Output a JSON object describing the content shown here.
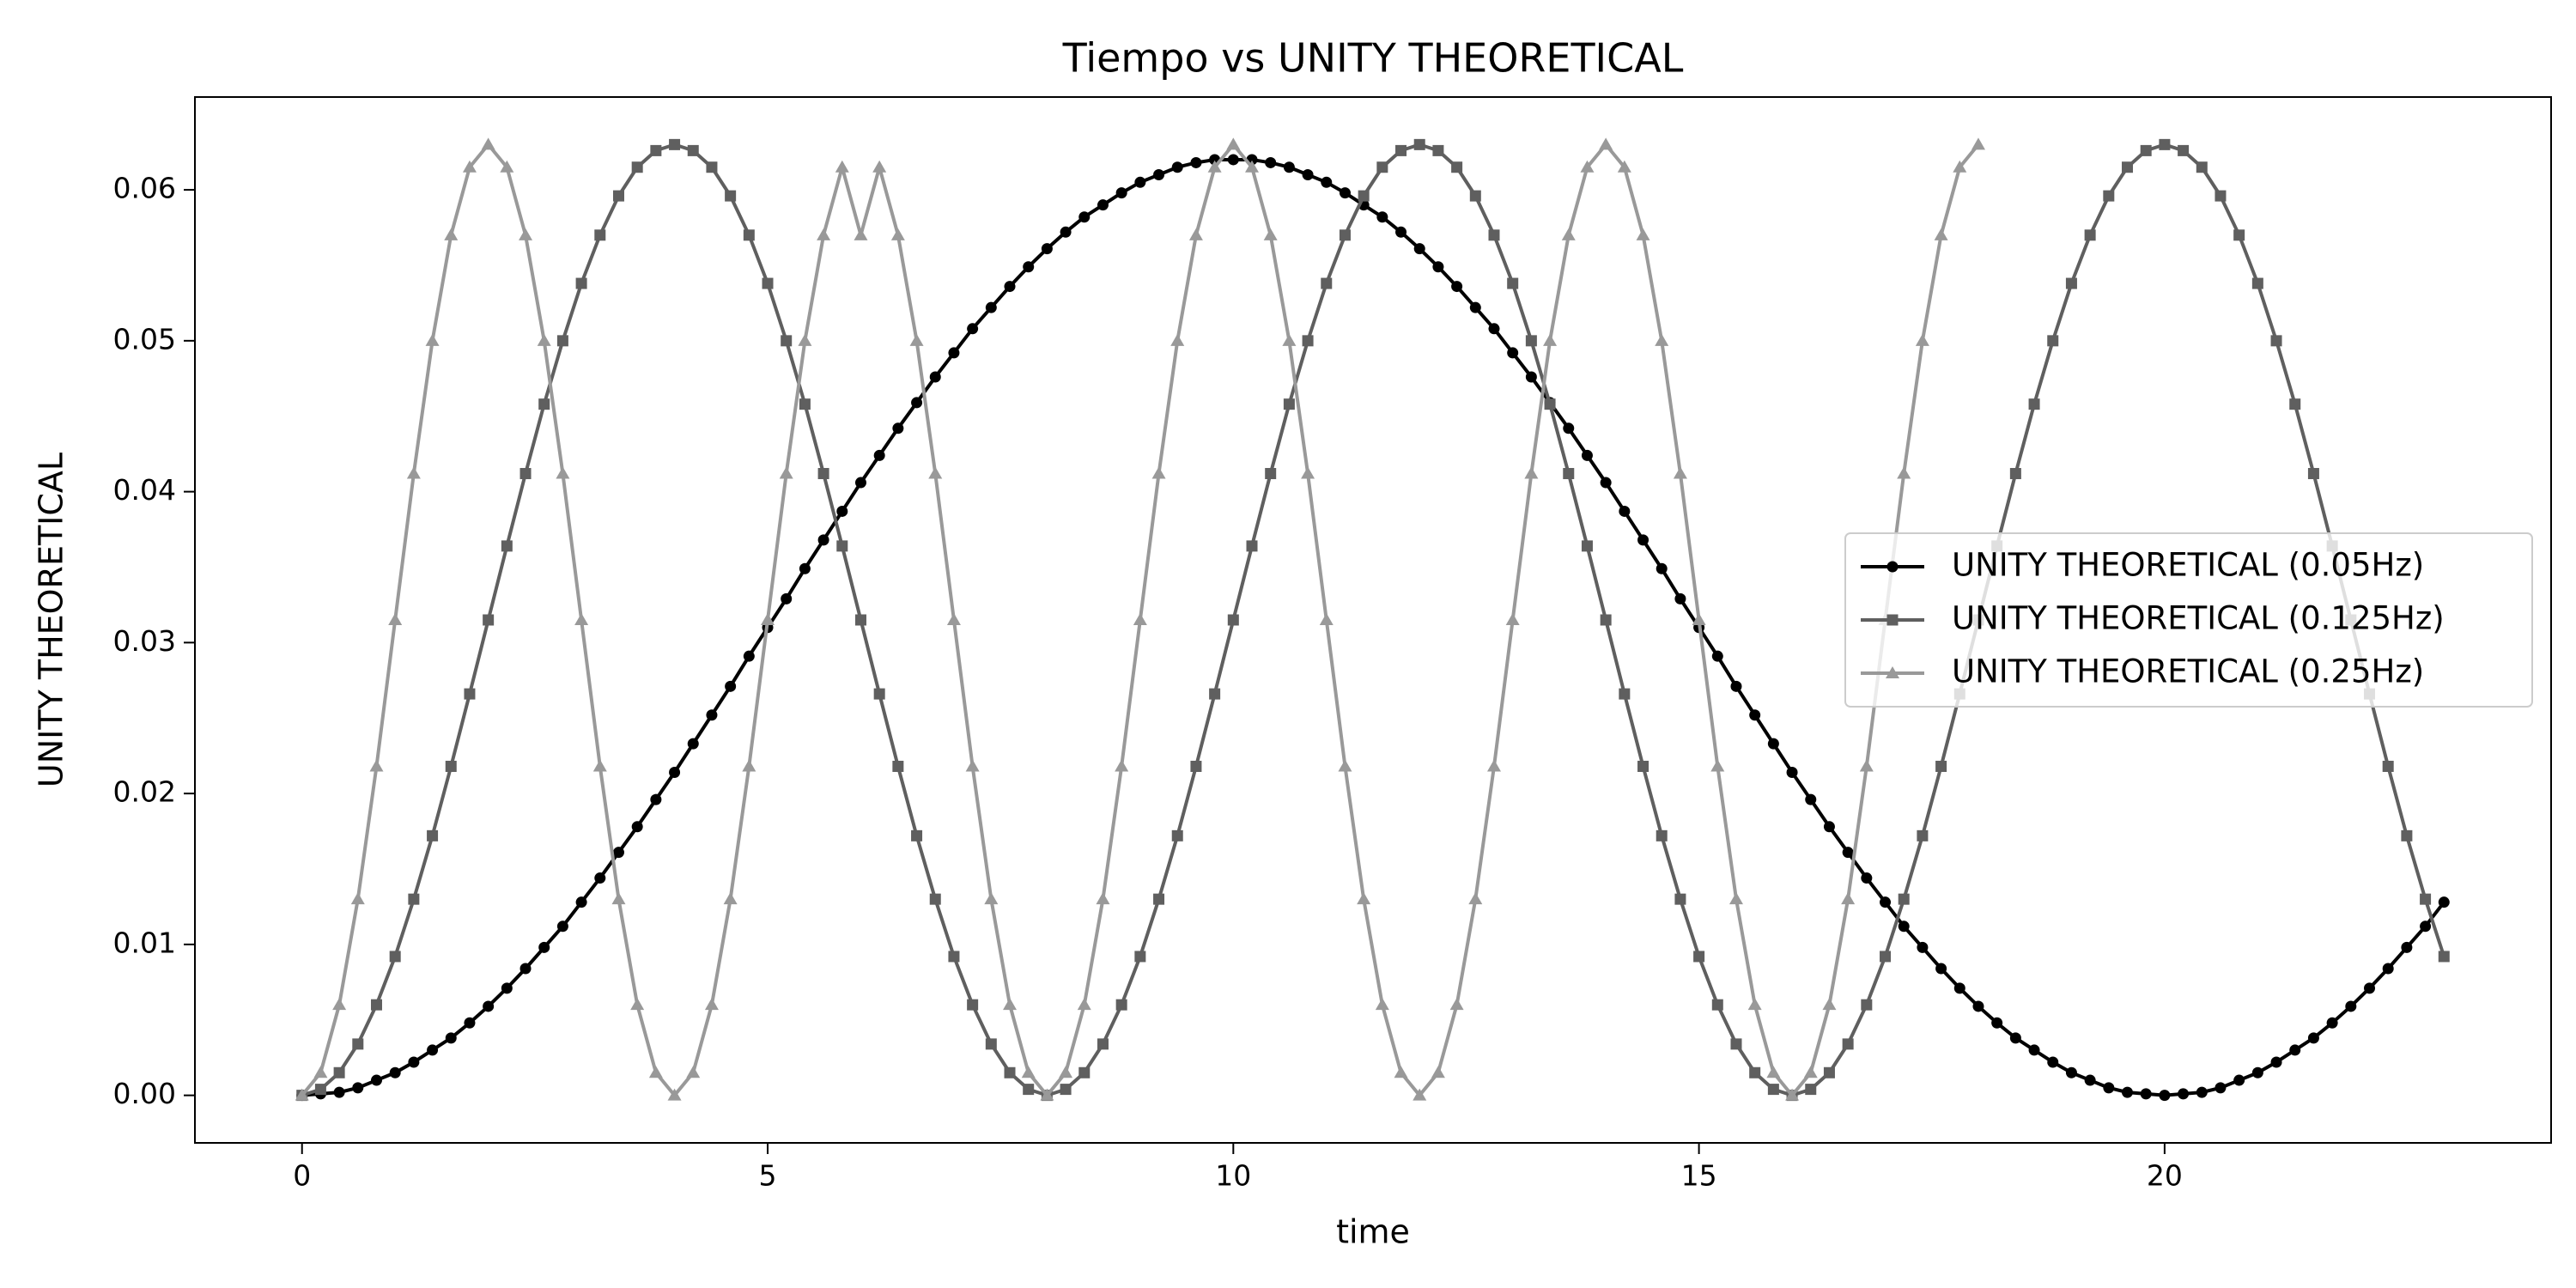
{
  "chart_data": {
    "type": "line",
    "title": "Tiempo vs UNITY THEORETICAL",
    "xlabel": "time",
    "ylabel": "UNITY THEORETICAL",
    "xlim": [
      -1.15,
      24.15
    ],
    "ylim": [
      -0.00315,
      0.06615
    ],
    "xticks": [
      0,
      5,
      10,
      15,
      20
    ],
    "yticks": [
      {
        "value": 0,
        "label": "0.00"
      },
      {
        "value": 0.01,
        "label": "0.01"
      },
      {
        "value": 0.02,
        "label": "0.02"
      },
      {
        "value": 0.03,
        "label": "0.03"
      },
      {
        "value": 0.04,
        "label": "0.04"
      },
      {
        "value": 0.05,
        "label": "0.05"
      },
      {
        "value": 0.06,
        "label": "0.06"
      }
    ],
    "grid": false,
    "legend": "center right",
    "series": [
      {
        "name": "UNITY THEORETICAL (0.05Hz)",
        "color": "#000000",
        "marker": "circle",
        "x": [
          0,
          0.2,
          0.4,
          0.6,
          0.8,
          1,
          1.2,
          1.4,
          1.6,
          1.8,
          2,
          2.2,
          2.4,
          2.6,
          2.8,
          3,
          3.2,
          3.4,
          3.6,
          3.8,
          4,
          4.2,
          4.4,
          4.6,
          4.8,
          5,
          5.2,
          5.4,
          5.6,
          5.8,
          6,
          6.2,
          6.4,
          6.6,
          6.8,
          7,
          7.2,
          7.4,
          7.6,
          7.8,
          8,
          8.2,
          8.4,
          8.6,
          8.8,
          9,
          9.2,
          9.4,
          9.6,
          9.8,
          10,
          10.2,
          10.4,
          10.6,
          10.8,
          11,
          11.2,
          11.4,
          11.6,
          11.8,
          12,
          12.2,
          12.4,
          12.6,
          12.8,
          13,
          13.2,
          13.4,
          13.6,
          13.8,
          14,
          14.2,
          14.4,
          14.6,
          14.8,
          15,
          15.2,
          15.4,
          15.6,
          15.8,
          16,
          16.2,
          16.4,
          16.6,
          16.8,
          17,
          17.2,
          17.4,
          17.6,
          17.8,
          18,
          18.2,
          18.4,
          18.6,
          18.8,
          19,
          19.2,
          19.4,
          19.6,
          19.8,
          20,
          20.2,
          20.4,
          20.6,
          20.8,
          21,
          21.2,
          21.4,
          21.6,
          21.8,
          22,
          22.2,
          22.4,
          22.6,
          22.8,
          23
        ],
        "values": [
          0,
          0.0001,
          0.0002,
          0.0005,
          0.001,
          0.0015,
          0.0022,
          0.003,
          0.0038,
          0.0048,
          0.0059,
          0.0071,
          0.0084,
          0.0098,
          0.0112,
          0.0128,
          0.0144,
          0.0161,
          0.0178,
          0.0196,
          0.0214,
          0.0233,
          0.0252,
          0.0271,
          0.0291,
          0.031,
          0.0329,
          0.0349,
          0.0368,
          0.0387,
          0.0406,
          0.0424,
          0.0442,
          0.0459,
          0.0476,
          0.0492,
          0.0508,
          0.0522,
          0.0536,
          0.0549,
          0.0561,
          0.0572,
          0.0582,
          0.059,
          0.0598,
          0.0605,
          0.061,
          0.0615,
          0.0618,
          0.062,
          0.062,
          0.062,
          0.0618,
          0.0615,
          0.061,
          0.0605,
          0.0598,
          0.059,
          0.0582,
          0.0572,
          0.0561,
          0.0549,
          0.0536,
          0.0522,
          0.0508,
          0.0492,
          0.0476,
          0.0459,
          0.0442,
          0.0424,
          0.0406,
          0.0387,
          0.0368,
          0.0349,
          0.0329,
          0.031,
          0.0291,
          0.0271,
          0.0252,
          0.0233,
          0.0214,
          0.0196,
          0.0178,
          0.0161,
          0.0144,
          0.0128,
          0.0112,
          0.0098,
          0.0084,
          0.0071,
          0.0059,
          0.0048,
          0.0038,
          0.003,
          0.0022,
          0.0015,
          0.001,
          0.0005,
          0.0002,
          0.0001,
          0,
          0.0001,
          0.0002,
          0.0005,
          0.001,
          0.0015,
          0.0022,
          0.003,
          0.0038,
          0.0048,
          0.0059,
          0.0071,
          0.0084,
          0.0098,
          0.0112,
          0.0128
        ]
      },
      {
        "name": "UNITY THEORETICAL (0.125Hz)",
        "color": "#5f5f5f",
        "marker": "square",
        "x": [
          0,
          0.2,
          0.4,
          0.6,
          0.8,
          1,
          1.2,
          1.4,
          1.6,
          1.8,
          2,
          2.2,
          2.4,
          2.6,
          2.8,
          3,
          3.2,
          3.4,
          3.6,
          3.8,
          4,
          4.2,
          4.4,
          4.6,
          4.8,
          5,
          5.2,
          5.4,
          5.6,
          5.8,
          6,
          6.2,
          6.4,
          6.6,
          6.8,
          7,
          7.2,
          7.4,
          7.6,
          7.8,
          8,
          8.2,
          8.4,
          8.6,
          8.8,
          9,
          9.2,
          9.4,
          9.6,
          9.8,
          10,
          10.2,
          10.4,
          10.6,
          10.8,
          11,
          11.2,
          11.4,
          11.6,
          11.8,
          12,
          12.2,
          12.4,
          12.6,
          12.8,
          13,
          13.2,
          13.4,
          13.6,
          13.8,
          14,
          14.2,
          14.4,
          14.6,
          14.8,
          15,
          15.2,
          15.4,
          15.6,
          15.8,
          16,
          16.2,
          16.4,
          16.6,
          16.8,
          17,
          17.2,
          17.4,
          17.6,
          17.8,
          18,
          18.2,
          18.4,
          18.6,
          18.8,
          19,
          19.2,
          19.4,
          19.6,
          19.8,
          20,
          20.2,
          20.4,
          20.6,
          20.8,
          21,
          21.2,
          21.4,
          21.6,
          21.8,
          22,
          22.2,
          22.4,
          22.6,
          22.8,
          23
        ],
        "values": [
          0,
          0.0004,
          0.0015,
          0.0034,
          0.006,
          0.0092,
          0.013,
          0.0172,
          0.0218,
          0.0266,
          0.0315,
          0.0364,
          0.0412,
          0.0458,
          0.05,
          0.0538,
          0.057,
          0.0596,
          0.0615,
          0.0626,
          0.063,
          0.0626,
          0.0615,
          0.0596,
          0.057,
          0.0538,
          0.05,
          0.0458,
          0.0412,
          0.0364,
          0.0315,
          0.0266,
          0.0218,
          0.0172,
          0.013,
          0.0092,
          0.006,
          0.0034,
          0.0015,
          0.0004,
          0,
          0.0004,
          0.0015,
          0.0034,
          0.006,
          0.0092,
          0.013,
          0.0172,
          0.0218,
          0.0266,
          0.0315,
          0.0364,
          0.0412,
          0.0458,
          0.05,
          0.0538,
          0.057,
          0.0596,
          0.0615,
          0.0626,
          0.063,
          0.0626,
          0.0615,
          0.0596,
          0.057,
          0.0538,
          0.05,
          0.0458,
          0.0412,
          0.0364,
          0.0315,
          0.0266,
          0.0218,
          0.0172,
          0.013,
          0.0092,
          0.006,
          0.0034,
          0.0015,
          0.0004,
          0,
          0.0004,
          0.0015,
          0.0034,
          0.006,
          0.0092,
          0.013,
          0.0172,
          0.0218,
          0.0266,
          0.0315,
          0.0364,
          0.0412,
          0.0458,
          0.05,
          0.0538,
          0.057,
          0.0596,
          0.0615,
          0.0626,
          0.063,
          0.0626,
          0.0615,
          0.0596,
          0.057,
          0.0538,
          0.05,
          0.0458,
          0.0412,
          0.0364,
          0.0315,
          0.0266,
          0.0218,
          0.0172,
          0.013,
          0.0092
        ]
      },
      {
        "name": "UNITY THEORETICAL (0.25Hz)",
        "color": "#999999",
        "marker": "triangle",
        "x": [
          0,
          0.2,
          0.4,
          0.6,
          0.8,
          1,
          1.2,
          1.4,
          1.6,
          1.8,
          2,
          2.2,
          2.4,
          2.6,
          2.8,
          3,
          3.2,
          3.4,
          3.6,
          3.8,
          4,
          4.2,
          4.4,
          4.6,
          4.8,
          5,
          5.2,
          5.4,
          5.6,
          5.8,
          6,
          6.2,
          6.4,
          6.6,
          6.8,
          7,
          7.2,
          7.4,
          7.6,
          7.8,
          8,
          8.2,
          8.4,
          8.6,
          8.8,
          9,
          9.2,
          9.4,
          9.6,
          9.8,
          10,
          10.2,
          10.4,
          10.6,
          10.8,
          11,
          11.2,
          11.4,
          11.6,
          11.8,
          12,
          12.2,
          12.4,
          12.6,
          12.8,
          13,
          13.2,
          13.4,
          13.6,
          13.8,
          14,
          14.2,
          14.4,
          14.6,
          14.8,
          15,
          15.2,
          15.4,
          15.6,
          15.8,
          16,
          16.2,
          16.4,
          16.6,
          16.8,
          17,
          17.2,
          17.4,
          17.6,
          17.8,
          18
        ],
        "values": [
          0,
          0.0015,
          0.006,
          0.013,
          0.0218,
          0.0315,
          0.0412,
          0.05,
          0.057,
          0.0615,
          0.063,
          0.0615,
          0.057,
          0.05,
          0.0412,
          0.0315,
          0.0218,
          0.013,
          0.006,
          0.0015,
          0,
          0.0015,
          0.006,
          0.013,
          0.0218,
          0.0315,
          0.0412,
          0.05,
          0.057,
          0.0615,
          0.057,
          0.0615,
          0.057,
          0.05,
          0.0412,
          0.0315,
          0.0218,
          0.013,
          0.006,
          0.0015,
          0,
          0.0015,
          0.006,
          0.013,
          0.0218,
          0.0315,
          0.0412,
          0.05,
          0.057,
          0.0615,
          0.063,
          0.0615,
          0.057,
          0.05,
          0.0412,
          0.0315,
          0.0218,
          0.013,
          0.006,
          0.0015,
          0,
          0.0015,
          0.006,
          0.013,
          0.0218,
          0.0315,
          0.0412,
          0.05,
          0.057,
          0.0615,
          0.063,
          0.0615,
          0.057,
          0.05,
          0.0412,
          0.0315,
          0.0218,
          0.013,
          0.006,
          0.0015,
          0,
          0.0015,
          0.006,
          0.013,
          0.0218,
          0.0315,
          0.0412,
          0.05,
          0.057,
          0.0615,
          0.063
        ]
      }
    ]
  }
}
